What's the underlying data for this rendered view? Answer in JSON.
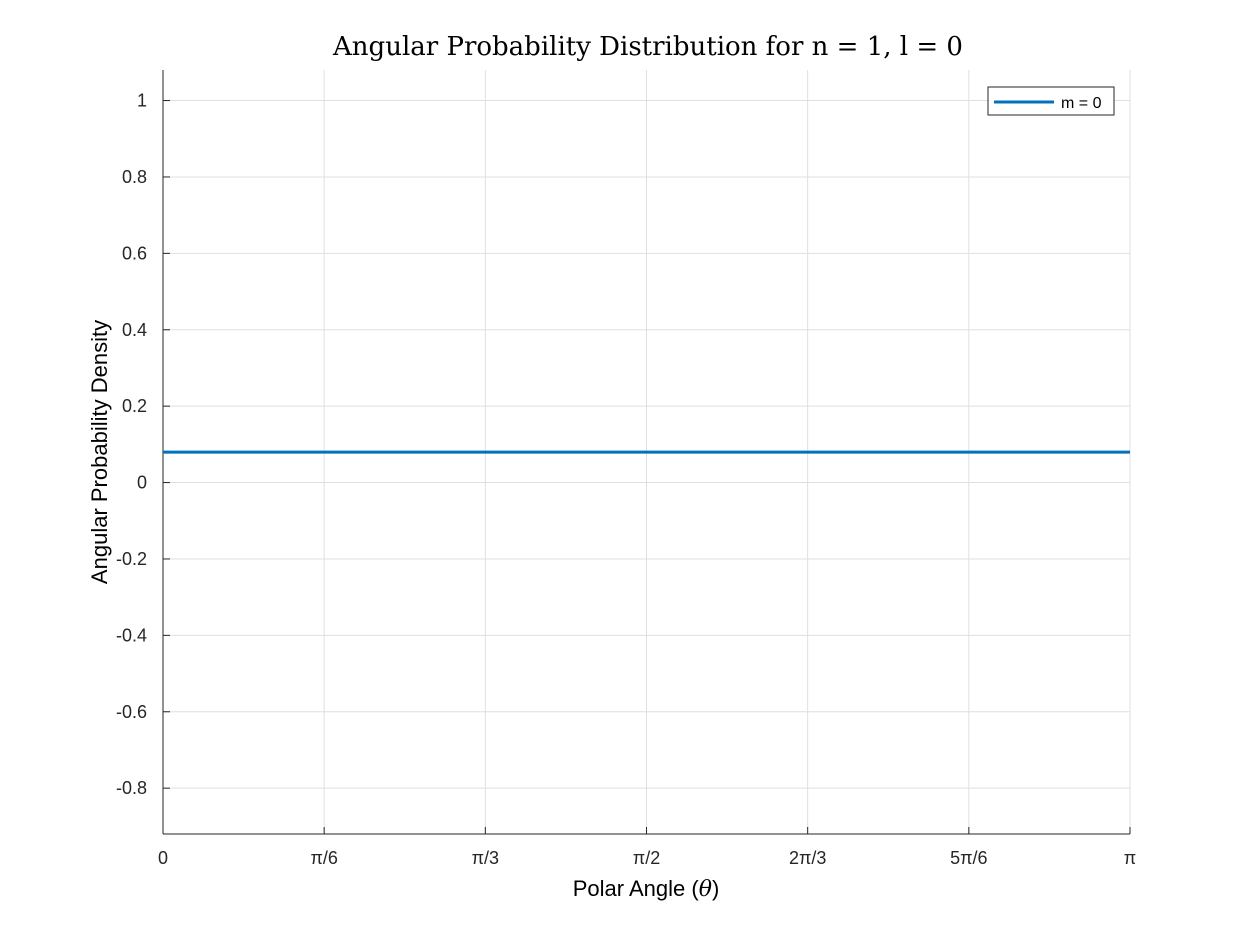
{
  "chart_data": {
    "type": "line",
    "title": "Angular Probability Distribution for n = 1, l = 0",
    "xlabel_prefix": "Polar Angle (",
    "xlabel_symbol": "θ",
    "xlabel_suffix": ")",
    "ylabel": "Angular Probability Density",
    "xlim": [
      0,
      3.14159
    ],
    "ylim": [
      -0.92,
      1.08
    ],
    "grid": true,
    "legend_position": "top-right",
    "x_ticks": [
      {
        "value": 0,
        "label": "0"
      },
      {
        "value": 0.5236,
        "label": "π/6"
      },
      {
        "value": 1.0472,
        "label": "π/3"
      },
      {
        "value": 1.5708,
        "label": "π/2"
      },
      {
        "value": 2.0944,
        "label": "2π/3"
      },
      {
        "value": 2.618,
        "label": "5π/6"
      },
      {
        "value": 3.14159,
        "label": "π"
      }
    ],
    "y_ticks": [
      {
        "value": 1,
        "label": "1"
      },
      {
        "value": 0.8,
        "label": "0.8"
      },
      {
        "value": 0.6,
        "label": "0.6"
      },
      {
        "value": 0.4,
        "label": "0.4"
      },
      {
        "value": 0.2,
        "label": "0.2"
      },
      {
        "value": 0,
        "label": "0"
      },
      {
        "value": -0.2,
        "label": "-0.2"
      },
      {
        "value": -0.4,
        "label": "-0.4"
      },
      {
        "value": -0.6,
        "label": "-0.6"
      },
      {
        "value": -0.8,
        "label": "-0.8"
      }
    ],
    "series": [
      {
        "name": "m = 0",
        "color": "#0072BD",
        "x": [
          0,
          0.5236,
          1.0472,
          1.5708,
          2.0944,
          2.618,
          3.14159
        ],
        "y": [
          0.0796,
          0.0796,
          0.0796,
          0.0796,
          0.0796,
          0.0796,
          0.0796
        ]
      }
    ]
  }
}
